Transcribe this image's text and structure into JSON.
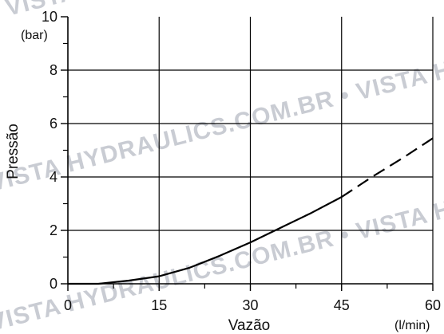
{
  "watermark": {
    "text": "VISTA HYDRAULICS.COM.BR • VISTA HYDRAULICS •",
    "color": "#c9ccd3"
  },
  "chart_data": {
    "type": "line",
    "title": "",
    "xlabel": "Vazão",
    "ylabel": "Pressão",
    "x_unit": "(l/min)",
    "y_unit": "(bar)",
    "xlim": [
      0,
      60
    ],
    "ylim": [
      0,
      10
    ],
    "x_ticks": [
      0,
      15,
      30,
      45,
      60
    ],
    "y_ticks": [
      0,
      2,
      4,
      6,
      8,
      10
    ],
    "grid": true,
    "series": [
      {
        "style": "solid",
        "color": "#000000",
        "points": [
          [
            0,
            0.0
          ],
          [
            5,
            0.0
          ],
          [
            10,
            0.12
          ],
          [
            15,
            0.28
          ],
          [
            20,
            0.6
          ],
          [
            25,
            1.05
          ],
          [
            30,
            1.55
          ],
          [
            35,
            2.1
          ],
          [
            40,
            2.65
          ],
          [
            45,
            3.25
          ]
        ]
      },
      {
        "style": "dashed",
        "color": "#000000",
        "points": [
          [
            45,
            3.25
          ],
          [
            50,
            4.0
          ],
          [
            55,
            4.7
          ],
          [
            60,
            5.45
          ]
        ]
      }
    ]
  }
}
